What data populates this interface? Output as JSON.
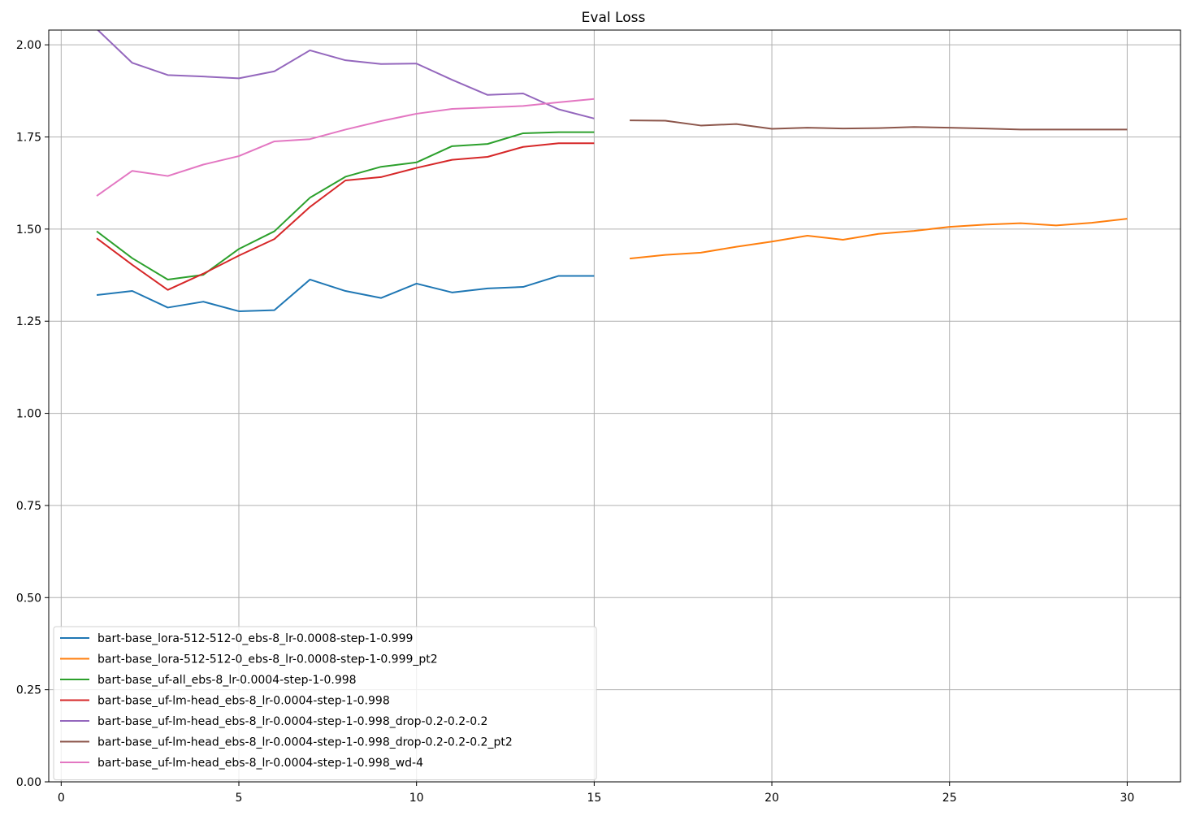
{
  "chart_data": {
    "type": "line",
    "title": "Eval Loss",
    "xlabel": "",
    "ylabel": "",
    "xlim": [
      -0.35,
      31.5
    ],
    "ylim": [
      0.0,
      2.04
    ],
    "x_ticks": [
      0,
      5,
      10,
      15,
      20,
      25,
      30
    ],
    "x_tick_labels": [
      "0",
      "5",
      "10",
      "15",
      "20",
      "25",
      "30"
    ],
    "y_ticks": [
      0.0,
      0.25,
      0.5,
      0.75,
      1.0,
      1.25,
      1.5,
      1.75,
      2.0
    ],
    "y_tick_labels": [
      "0.00",
      "0.25",
      "0.50",
      "0.75",
      "1.00",
      "1.25",
      "1.50",
      "1.75",
      "2.00"
    ],
    "grid": true,
    "legend_position": "lower-left",
    "series": [
      {
        "name": "bart-base_lora-512-512-0_ebs-8_lr-0.0008-step-1-0.999",
        "color": "#1f77b4",
        "x": [
          1,
          2,
          3,
          4,
          5,
          6,
          7,
          8,
          9,
          10,
          11,
          12,
          13,
          14,
          15
        ],
        "y": [
          1.321,
          1.332,
          1.287,
          1.303,
          1.277,
          1.28,
          1.363,
          1.332,
          1.313,
          1.352,
          1.328,
          1.339,
          1.343,
          1.373,
          1.373
        ]
      },
      {
        "name": "bart-base_lora-512-512-0_ebs-8_lr-0.0008-step-1-0.999_pt2",
        "color": "#ff7f0e",
        "x": [
          16,
          17,
          18,
          19,
          20,
          21,
          22,
          23,
          24,
          25,
          26,
          27,
          28,
          29,
          30
        ],
        "y": [
          1.42,
          1.43,
          1.436,
          1.452,
          1.466,
          1.482,
          1.471,
          1.487,
          1.495,
          1.506,
          1.512,
          1.516,
          1.51,
          1.517,
          1.528
        ]
      },
      {
        "name": "bart-base_uf-all_ebs-8_lr-0.0004-step-1-0.998",
        "color": "#2ca02c",
        "x": [
          1,
          2,
          3,
          4,
          5,
          6,
          7,
          8,
          9,
          10,
          11,
          12,
          13,
          14,
          15
        ],
        "y": [
          1.494,
          1.421,
          1.363,
          1.376,
          1.446,
          1.494,
          1.585,
          1.642,
          1.669,
          1.681,
          1.725,
          1.731,
          1.76,
          1.763,
          1.763
        ]
      },
      {
        "name": "bart-base_uf-lm-head_ebs-8_lr-0.0004-step-1-0.998",
        "color": "#d62728",
        "x": [
          1,
          2,
          3,
          4,
          5,
          6,
          7,
          8,
          9,
          10,
          11,
          12,
          13,
          14,
          15
        ],
        "y": [
          1.475,
          1.403,
          1.335,
          1.379,
          1.428,
          1.473,
          1.56,
          1.632,
          1.641,
          1.666,
          1.688,
          1.696,
          1.723,
          1.733,
          1.733
        ]
      },
      {
        "name": "bart-base_uf-lm-head_ebs-8_lr-0.0004-step-1-0.998_drop-0.2-0.2-0.2",
        "color": "#9467bd",
        "x": [
          1,
          2,
          3,
          4,
          5,
          6,
          7,
          8,
          9,
          10,
          11,
          12,
          13,
          14,
          15
        ],
        "y": [
          2.043,
          1.951,
          1.918,
          1.914,
          1.909,
          1.928,
          1.985,
          1.958,
          1.948,
          1.949,
          1.905,
          1.864,
          1.868,
          1.825,
          1.8
        ]
      },
      {
        "name": "bart-base_uf-lm-head_ebs-8_lr-0.0004-step-1-0.998_drop-0.2-0.2-0.2_pt2",
        "color": "#8c564b",
        "x": [
          16,
          17,
          18,
          19,
          20,
          21,
          22,
          23,
          24,
          25,
          26,
          27,
          28,
          29,
          30
        ],
        "y": [
          1.795,
          1.794,
          1.781,
          1.785,
          1.772,
          1.775,
          1.773,
          1.774,
          1.777,
          1.775,
          1.773,
          1.77,
          1.77,
          1.77,
          1.77
        ]
      },
      {
        "name": "bart-base_uf-lm-head_ebs-8_lr-0.0004-step-1-0.998_wd-4",
        "color": "#e377c2",
        "x": [
          1,
          2,
          3,
          4,
          5,
          6,
          7,
          8,
          9,
          10,
          11,
          12,
          13,
          14,
          15
        ],
        "y": [
          1.59,
          1.658,
          1.644,
          1.675,
          1.698,
          1.738,
          1.744,
          1.77,
          1.793,
          1.813,
          1.826,
          1.83,
          1.834,
          1.844,
          1.853
        ]
      }
    ]
  }
}
